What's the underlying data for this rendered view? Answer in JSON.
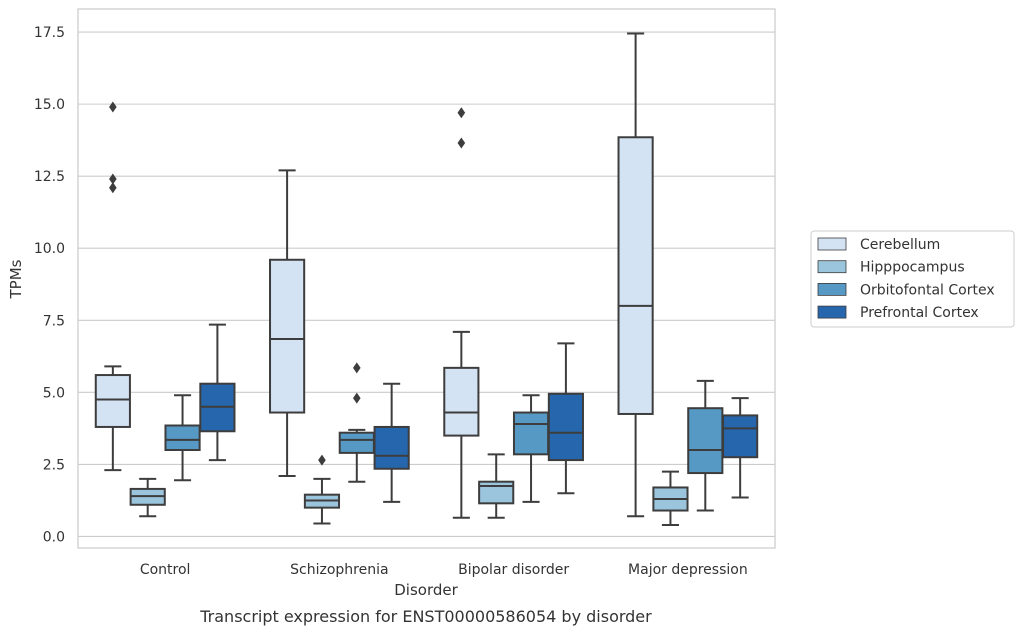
{
  "chart_data": {
    "type": "boxplot",
    "caption": "Transcript expression for ENST00000586054 by disorder",
    "xlabel": "Disorder",
    "ylabel": "TPMs",
    "ylim": [
      -0.4,
      18.3
    ],
    "yticks": [
      0.0,
      2.5,
      5.0,
      7.5,
      10.0,
      12.5,
      15.0,
      17.5
    ],
    "ytick_labels": [
      "0.0",
      "2.5",
      "5.0",
      "7.5",
      "10.0",
      "12.5",
      "15.0",
      "17.5"
    ],
    "grid": "horizontal",
    "legend_position": "right",
    "categories": [
      "Control",
      "Schizophrenia",
      "Bipolar disorder",
      "Major depression"
    ],
    "series": [
      {
        "name": "Cerebellum",
        "color": "#d4e3f3",
        "boxes": [
          {
            "whislo": 2.3,
            "q1": 3.8,
            "med": 4.75,
            "q3": 5.6,
            "whishi": 5.9,
            "fliers": [
              12.1,
              12.4,
              14.9
            ]
          },
          {
            "whislo": 2.1,
            "q1": 4.3,
            "med": 6.85,
            "q3": 9.6,
            "whishi": 12.7,
            "fliers": []
          },
          {
            "whislo": 0.65,
            "q1": 3.5,
            "med": 4.3,
            "q3": 5.85,
            "whishi": 7.1,
            "fliers": [
              13.65,
              14.7
            ]
          },
          {
            "whislo": 0.7,
            "q1": 4.25,
            "med": 8.0,
            "q3": 13.85,
            "whishi": 17.45,
            "fliers": []
          }
        ]
      },
      {
        "name": "Hipppocampus",
        "color": "#9bc4dd",
        "boxes": [
          {
            "whislo": 0.7,
            "q1": 1.1,
            "med": 1.4,
            "q3": 1.65,
            "whishi": 2.0,
            "fliers": []
          },
          {
            "whislo": 0.45,
            "q1": 1.0,
            "med": 1.25,
            "q3": 1.45,
            "whishi": 2.0,
            "fliers": [
              2.65
            ]
          },
          {
            "whislo": 0.65,
            "q1": 1.15,
            "med": 1.75,
            "q3": 1.9,
            "whishi": 2.85,
            "fliers": []
          },
          {
            "whislo": 0.4,
            "q1": 0.9,
            "med": 1.3,
            "q3": 1.7,
            "whishi": 2.25,
            "fliers": []
          }
        ]
      },
      {
        "name": "Orbitofontal Cortex",
        "color": "#5799c5",
        "boxes": [
          {
            "whislo": 1.95,
            "q1": 3.0,
            "med": 3.35,
            "q3": 3.85,
            "whishi": 4.9,
            "fliers": []
          },
          {
            "whislo": 1.9,
            "q1": 2.9,
            "med": 3.35,
            "q3": 3.6,
            "whishi": 3.7,
            "fliers": [
              4.8,
              5.85
            ]
          },
          {
            "whislo": 1.2,
            "q1": 2.85,
            "med": 3.9,
            "q3": 4.3,
            "whishi": 4.9,
            "fliers": []
          },
          {
            "whislo": 0.9,
            "q1": 2.2,
            "med": 3.0,
            "q3": 4.45,
            "whishi": 5.4,
            "fliers": []
          }
        ]
      },
      {
        "name": "Prefrontal Cortex",
        "color": "#2666ad",
        "boxes": [
          {
            "whislo": 2.65,
            "q1": 3.65,
            "med": 4.5,
            "q3": 5.3,
            "whishi": 7.35,
            "fliers": []
          },
          {
            "whislo": 1.2,
            "q1": 2.35,
            "med": 2.8,
            "q3": 3.8,
            "whishi": 5.3,
            "fliers": []
          },
          {
            "whislo": 1.5,
            "q1": 2.65,
            "med": 3.6,
            "q3": 4.95,
            "whishi": 6.7,
            "fliers": []
          },
          {
            "whislo": 1.35,
            "q1": 2.75,
            "med": 3.75,
            "q3": 4.2,
            "whishi": 4.8,
            "fliers": []
          }
        ]
      }
    ]
  }
}
